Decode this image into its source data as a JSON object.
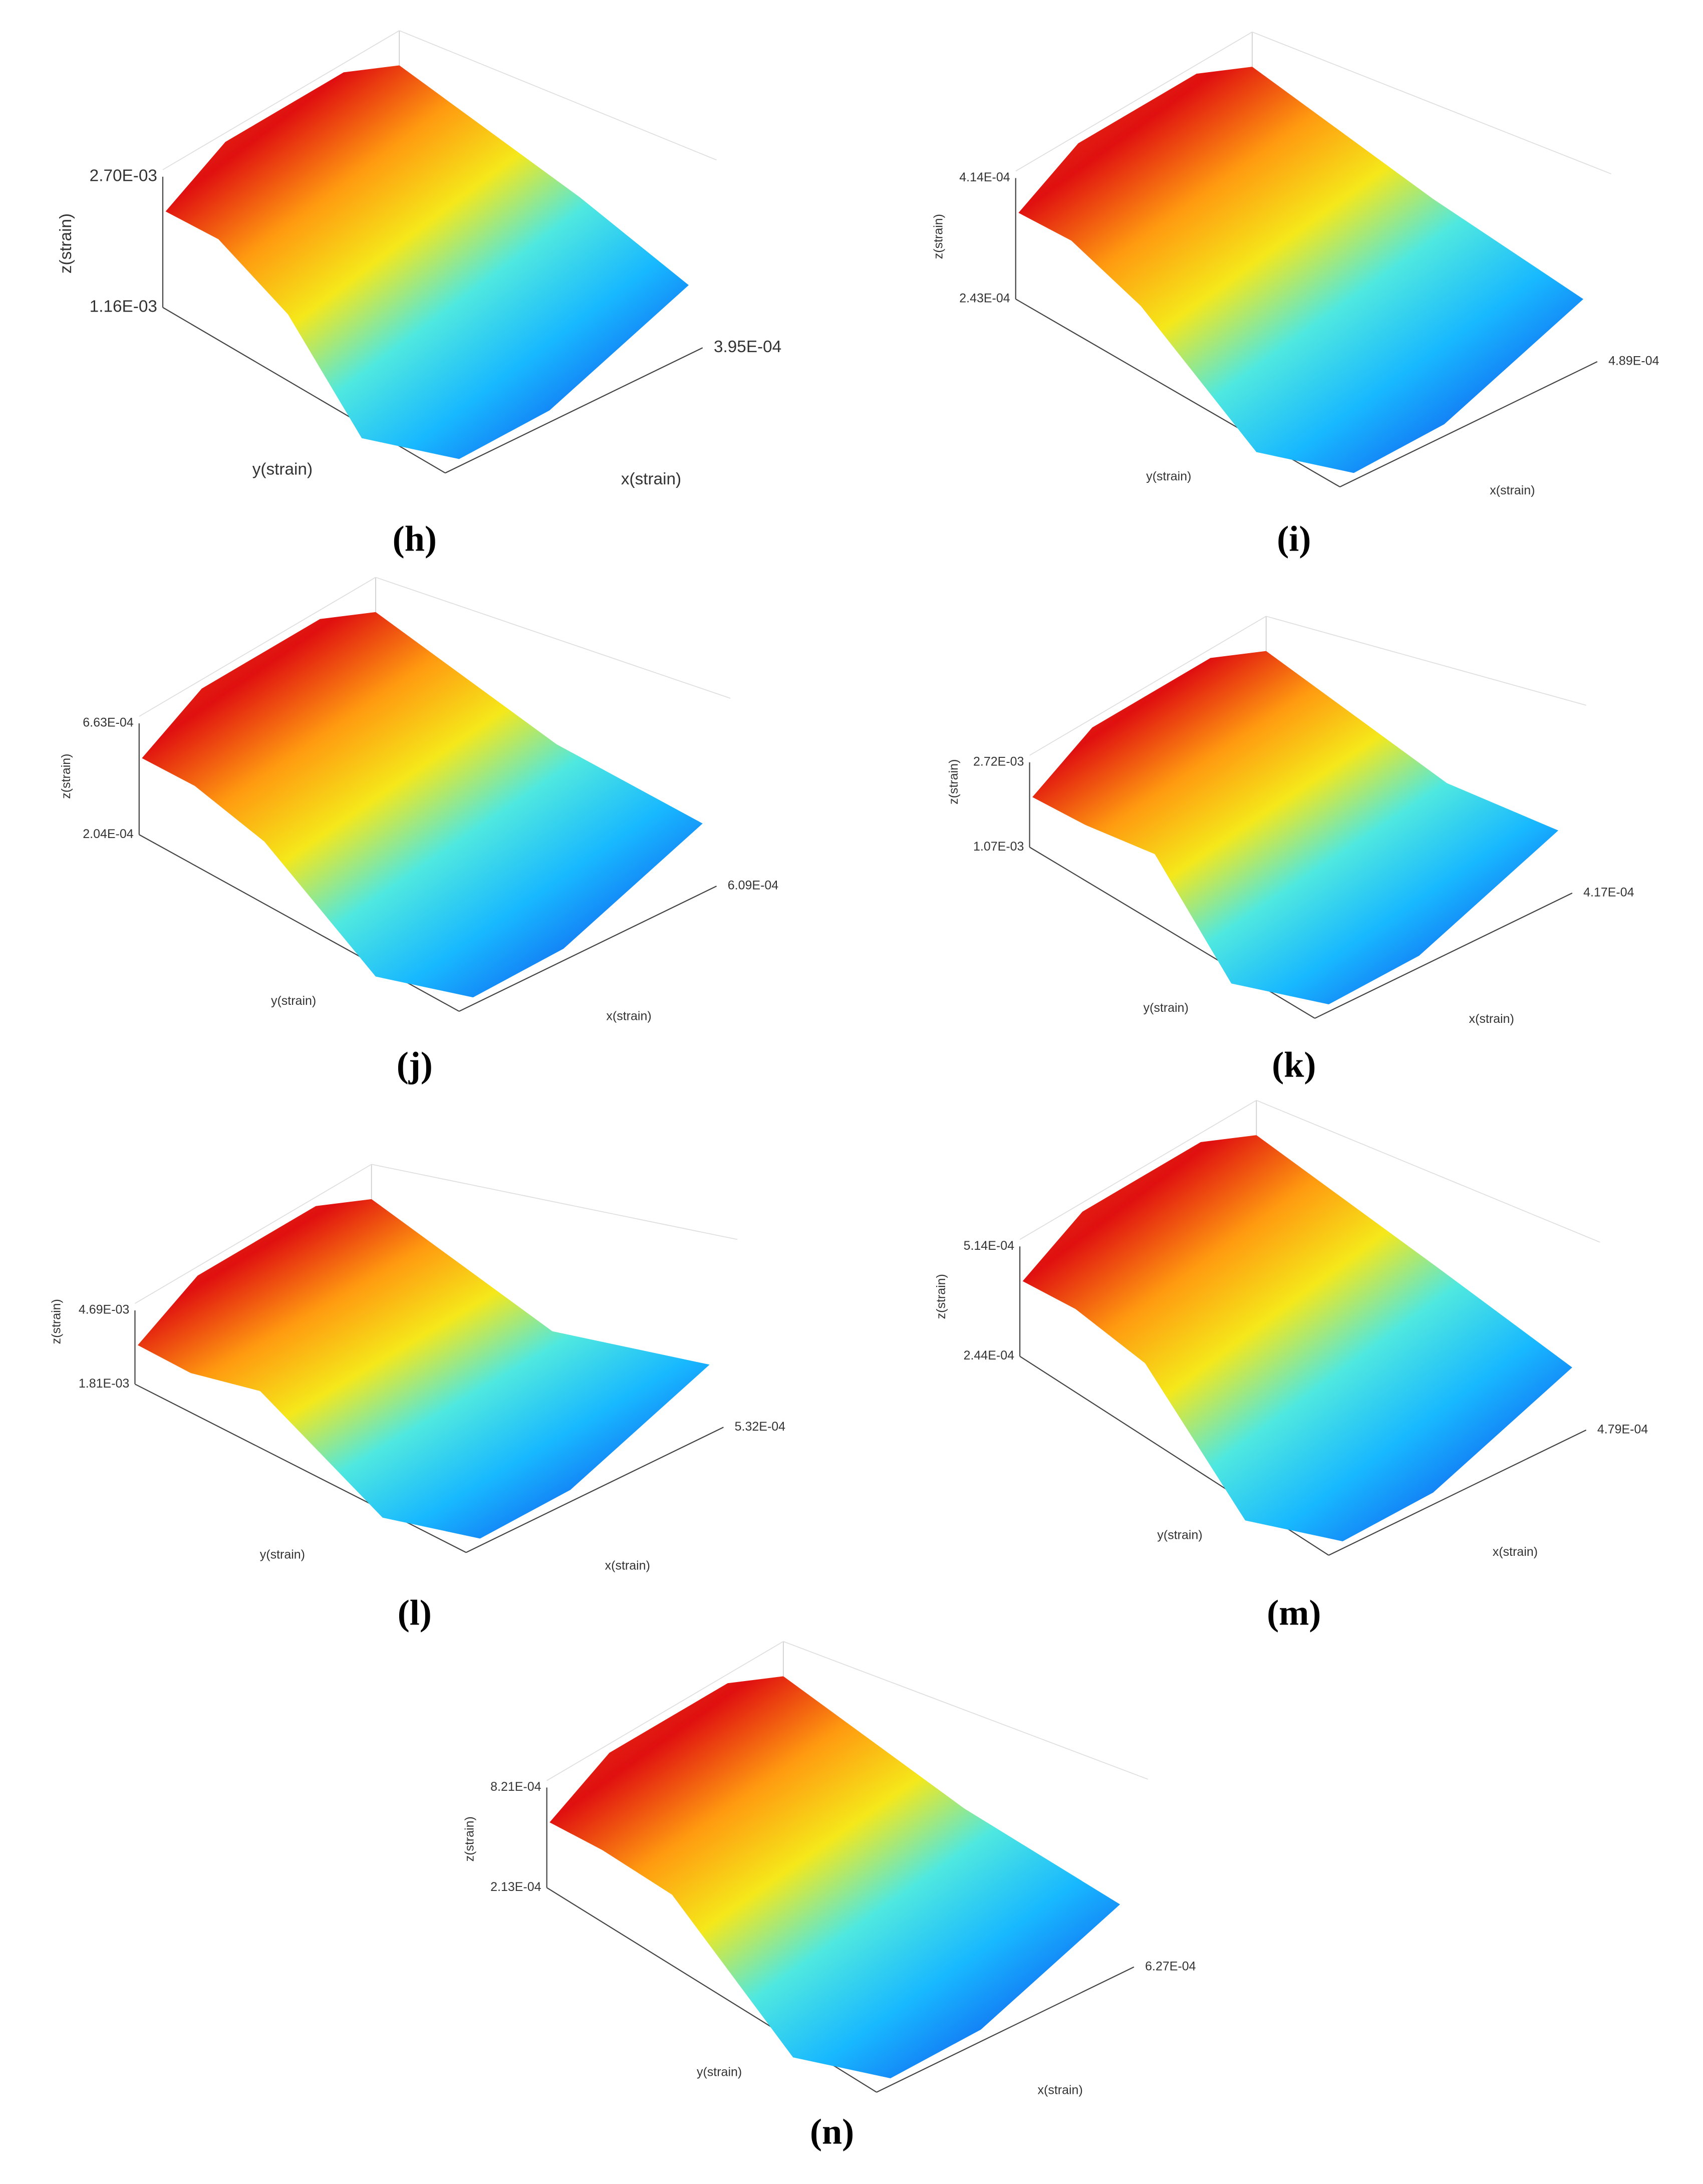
{
  "panels": [
    {
      "label": "(h)",
      "z_ticks": [
        "2.70E-03",
        "1.16E-03"
      ],
      "x_tick": "3.95E-04",
      "z_label": "z(strain)",
      "y_label": "y(strain)",
      "x_label": "x(strain)"
    },
    {
      "label": "(i)",
      "z_ticks": [
        "4.14E-04",
        "2.43E-04"
      ],
      "x_tick": "4.89E-04",
      "z_label": "z(strain)",
      "y_label": "y(strain)",
      "x_label": "x(strain)"
    },
    {
      "label": "(j)",
      "z_ticks": [
        "6.63E-04",
        "2.04E-04"
      ],
      "x_tick": "6.09E-04",
      "z_label": "z(strain)",
      "y_label": "y(strain)",
      "x_label": "x(strain)"
    },
    {
      "label": "(k)",
      "z_ticks": [
        "2.72E-03",
        "1.07E-03"
      ],
      "x_tick": "4.17E-04",
      "z_label": "z(strain)",
      "y_label": "y(strain)",
      "x_label": "x(strain)"
    },
    {
      "label": "(l)",
      "z_ticks": [
        "4.69E-03",
        "1.81E-03"
      ],
      "x_tick": "5.32E-04",
      "z_label": "z(strain)",
      "y_label": "y(strain)",
      "x_label": "x(strain)"
    },
    {
      "label": "(m)",
      "z_ticks": [
        "5.14E-04",
        "2.44E-04"
      ],
      "x_tick": "4.79E-04",
      "z_label": "z(strain)",
      "y_label": "y(strain)",
      "x_label": "x(strain)"
    },
    {
      "label": "(n)",
      "z_ticks": [
        "8.21E-04",
        "2.13E-04"
      ],
      "x_tick": "6.27E-04",
      "z_label": "z(strain)",
      "y_label": "y(strain)",
      "x_label": "x(strain)"
    }
  ]
}
